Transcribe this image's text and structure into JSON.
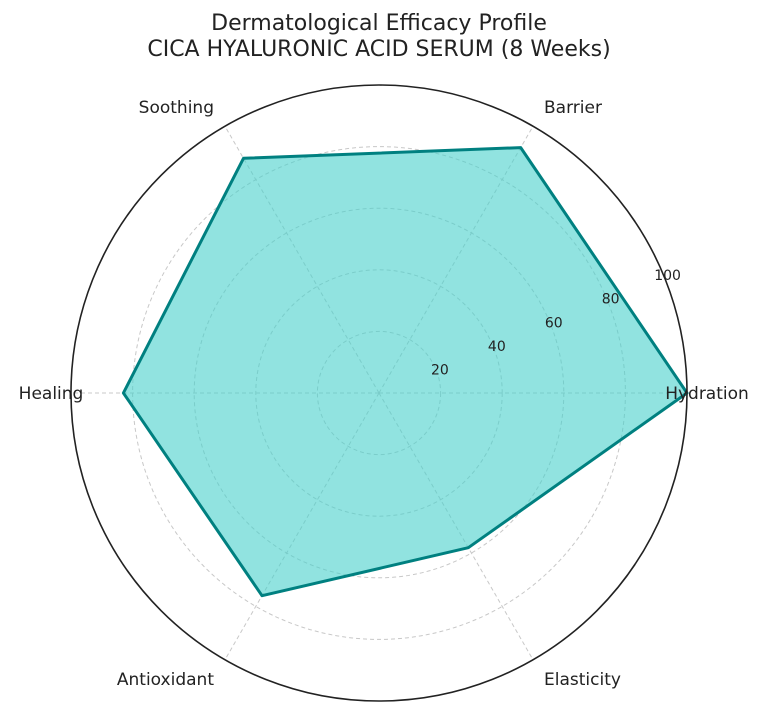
{
  "chart_data": {
    "type": "radar",
    "title": "Dermatological Efficacy Profile",
    "subtitle": "CICA HYALURONIC ACID SERUM (8 Weeks)",
    "categories": [
      "Hydration",
      "Barrier",
      "Soothing",
      "Healing",
      "Antioxidant",
      "Elasticity"
    ],
    "values": [
      100,
      92,
      88,
      83,
      76,
      58
    ],
    "rlim": [
      0,
      100
    ],
    "rticks": [
      20,
      40,
      60,
      80,
      100
    ],
    "grid": true,
    "colors": {
      "line": "#008080",
      "fill": "#48D1CC",
      "grid": "#c8c8c8",
      "outer": "#222222"
    }
  }
}
